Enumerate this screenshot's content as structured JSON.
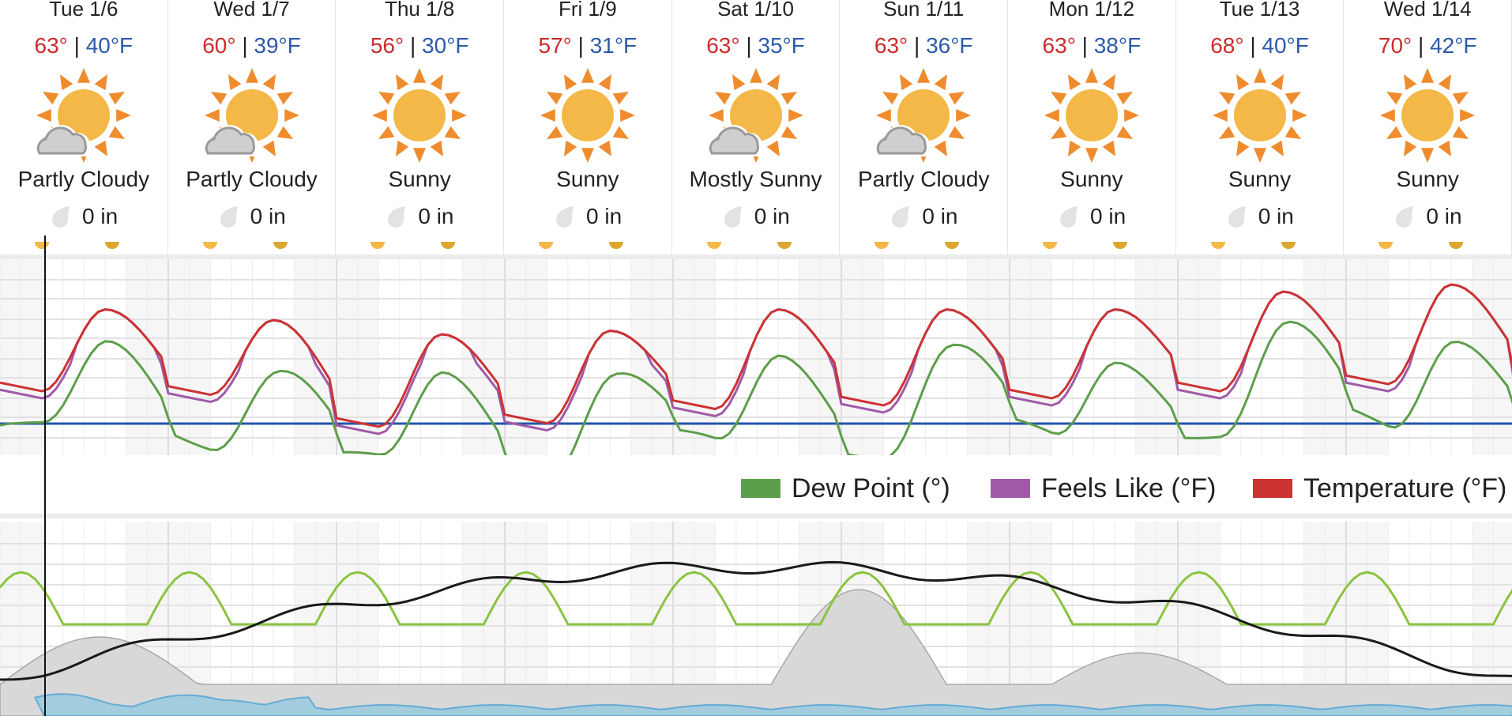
{
  "days": [
    {
      "label": "Tue 1/6",
      "hi": "63°",
      "lo": "40°F",
      "icon": "partly-cloudy-icon",
      "condition": "Partly Cloudy",
      "precip": "0 in",
      "high": 63,
      "low": 40
    },
    {
      "label": "Wed 1/7",
      "hi": "60°",
      "lo": "39°F",
      "icon": "partly-cloudy-icon",
      "condition": "Partly Cloudy",
      "precip": "0 in",
      "high": 60,
      "low": 39
    },
    {
      "label": "Thu 1/8",
      "hi": "56°",
      "lo": "30°F",
      "icon": "sunny-icon",
      "condition": "Sunny",
      "precip": "0 in",
      "high": 56,
      "low": 30
    },
    {
      "label": "Fri 1/9",
      "hi": "57°",
      "lo": "31°F",
      "icon": "sunny-icon",
      "condition": "Sunny",
      "precip": "0 in",
      "high": 57,
      "low": 31
    },
    {
      "label": "Sat 1/10",
      "hi": "63°",
      "lo": "35°F",
      "icon": "partly-cloudy-icon",
      "condition": "Mostly Sunny",
      "precip": "0 in",
      "high": 63,
      "low": 35
    },
    {
      "label": "Sun 1/11",
      "hi": "63°",
      "lo": "36°F",
      "icon": "partly-cloudy-icon",
      "condition": "Partly Cloudy",
      "precip": "0 in",
      "high": 63,
      "low": 36
    },
    {
      "label": "Mon 1/12",
      "hi": "63°",
      "lo": "38°F",
      "icon": "sunny-icon",
      "condition": "Sunny",
      "precip": "0 in",
      "high": 63,
      "low": 38
    },
    {
      "label": "Tue 1/13",
      "hi": "68°",
      "lo": "40°F",
      "icon": "sunny-icon",
      "condition": "Sunny",
      "precip": "0 in",
      "high": 68,
      "low": 40
    },
    {
      "label": "Wed 1/14",
      "hi": "70°",
      "lo": "42°F",
      "icon": "sunny-icon",
      "condition": "Sunny",
      "precip": "0 in",
      "high": 70,
      "low": 42
    }
  ],
  "separator": "|",
  "legend": [
    {
      "label": "Dew Point (°)",
      "color": "#5d9e4b"
    },
    {
      "label": "Feels Like (°F)",
      "color": "#a05aa8"
    },
    {
      "label": "Temperature (°F)",
      "color": "#cc3333"
    }
  ],
  "colors": {
    "sun": "#f3b847",
    "sun_rays": "#ef8c2e",
    "cloud": "#cfcfcf",
    "freezing_line": "#2255aa",
    "humidity": "#8ac43f",
    "pressure": "#1a1a1a",
    "cloud_cover": "#d8d8d8",
    "wind": "#9fcbe0"
  }
}
